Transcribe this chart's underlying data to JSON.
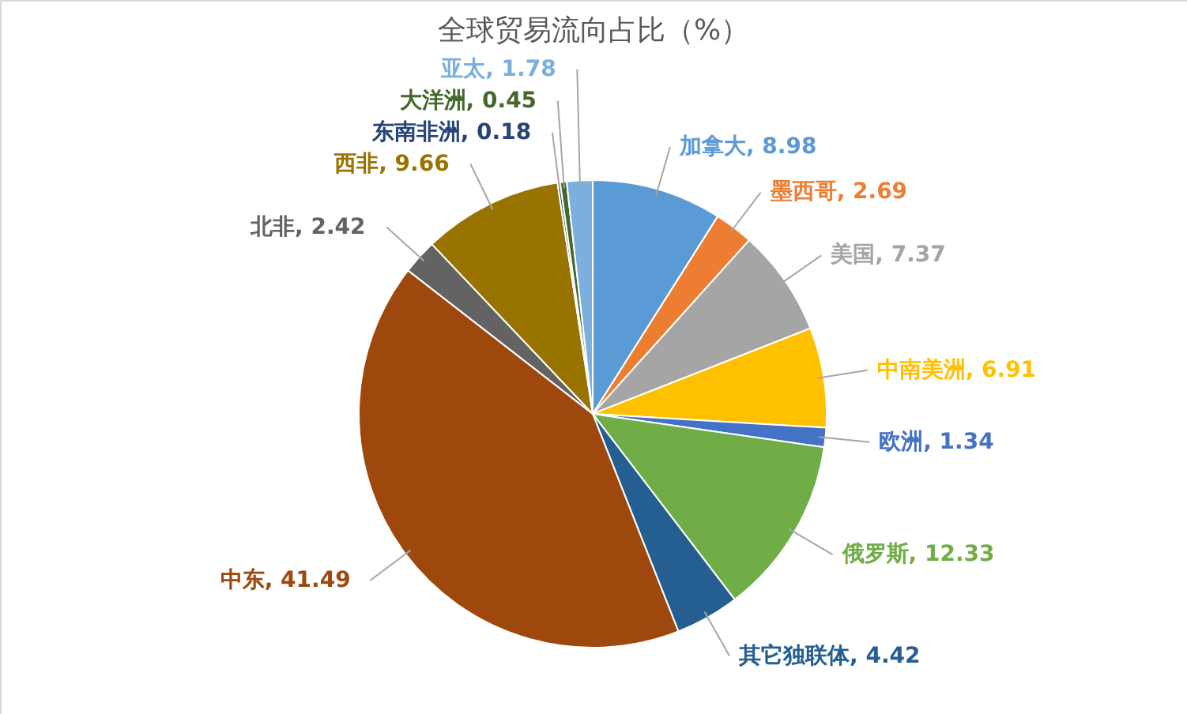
{
  "chart_data": {
    "type": "pie",
    "title": "全球贸易流向占比（%）",
    "categories": [
      "加拿大",
      "墨西哥",
      "美国",
      "中南美洲",
      "欧洲",
      "俄罗斯",
      "其它独联体",
      "中东",
      "北非",
      "西非",
      "东南非洲",
      "大洋洲",
      "亚太"
    ],
    "values": [
      8.98,
      2.69,
      7.37,
      6.91,
      1.34,
      12.33,
      4.42,
      41.49,
      2.42,
      9.66,
      0.18,
      0.45,
      1.78
    ],
    "colors": [
      "#5b9bd5",
      "#ed7d31",
      "#a5a5a5",
      "#ffc000",
      "#4472c4",
      "#70ad47",
      "#255e91",
      "#9e480e",
      "#636363",
      "#997300",
      "#264478",
      "#43682b",
      "#7cafdd"
    ],
    "value_labels": [
      ", 8.98",
      ", 2.69",
      ", 7.37",
      ", 6.91",
      ", 1.34",
      ", 12.33",
      ", 4.42",
      ", 41.49",
      ", 2.42",
      ", 9.66",
      ", 0.18",
      ", 0.45",
      ", 1.78"
    ]
  }
}
